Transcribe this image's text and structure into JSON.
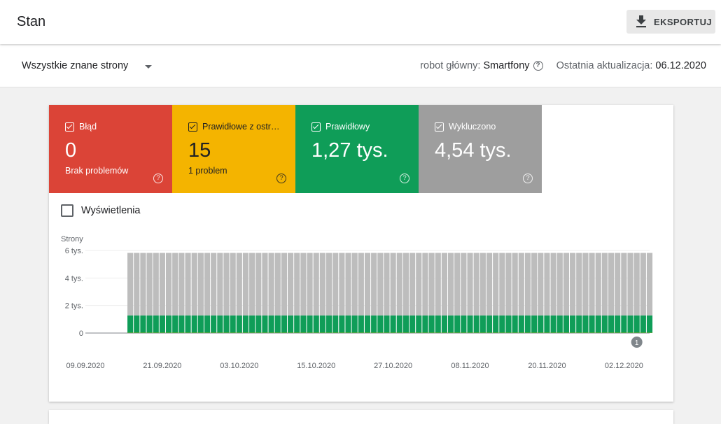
{
  "header": {
    "title": "Stan",
    "export_label": "EKSPORTUJ"
  },
  "filter": {
    "dropdown_value": "Wszystkie znane strony",
    "crawler_label": "robot główny:",
    "crawler_value": "Smartfony",
    "updated_label": "Ostatnia aktualizacja:",
    "updated_value": "06.12.2020"
  },
  "tiles": [
    {
      "name": "Błąd",
      "value": "0",
      "sub": "Brak problemów",
      "color": "#db4437"
    },
    {
      "name": "Prawidłowe z ostr…",
      "value": "15",
      "sub": "1 problem",
      "color": "#f4b400"
    },
    {
      "name": "Prawidłowy",
      "value": "1,27 tys.",
      "sub": "",
      "color": "#0f9d58"
    },
    {
      "name": "Wykluczono",
      "value": "4,54 tys.",
      "sub": "",
      "color": "#9e9e9e"
    }
  ],
  "views_toggle": {
    "label": "Wyświetlenia",
    "checked": false
  },
  "help_glyph": "?",
  "chart_data": {
    "type": "bar",
    "stacked": true,
    "ylabel": "Strony",
    "ylim": [
      0,
      6000
    ],
    "y_ticks": [
      {
        "value": 0,
        "label": "0"
      },
      {
        "value": 2000,
        "label": "2 tys."
      },
      {
        "value": 4000,
        "label": "4 tys."
      },
      {
        "value": 6000,
        "label": "6 tys."
      }
    ],
    "x_start": "09.09.2020",
    "x_end": "06.12.2020",
    "x_tick_labels": [
      "09.09.2020",
      "21.09.2020",
      "03.10.2020",
      "15.10.2020",
      "27.10.2020",
      "08.11.2020",
      "20.11.2020",
      "02.12.2020"
    ],
    "first_data_date": "16.09.2020",
    "series": [
      {
        "name": "Błąd",
        "color": "#db4437",
        "value": 0
      },
      {
        "name": "Prawidłowe z ostrzeżeniami",
        "color": "#f4b400",
        "value": 15
      },
      {
        "name": "Prawidłowy",
        "color": "#0f9d58",
        "value": 1270
      },
      {
        "name": "Wykluczono",
        "color": "#bdbdbd",
        "value": 4540
      }
    ],
    "annotation": {
      "label": "1",
      "date": "04.12.2020"
    },
    "grid": true
  }
}
